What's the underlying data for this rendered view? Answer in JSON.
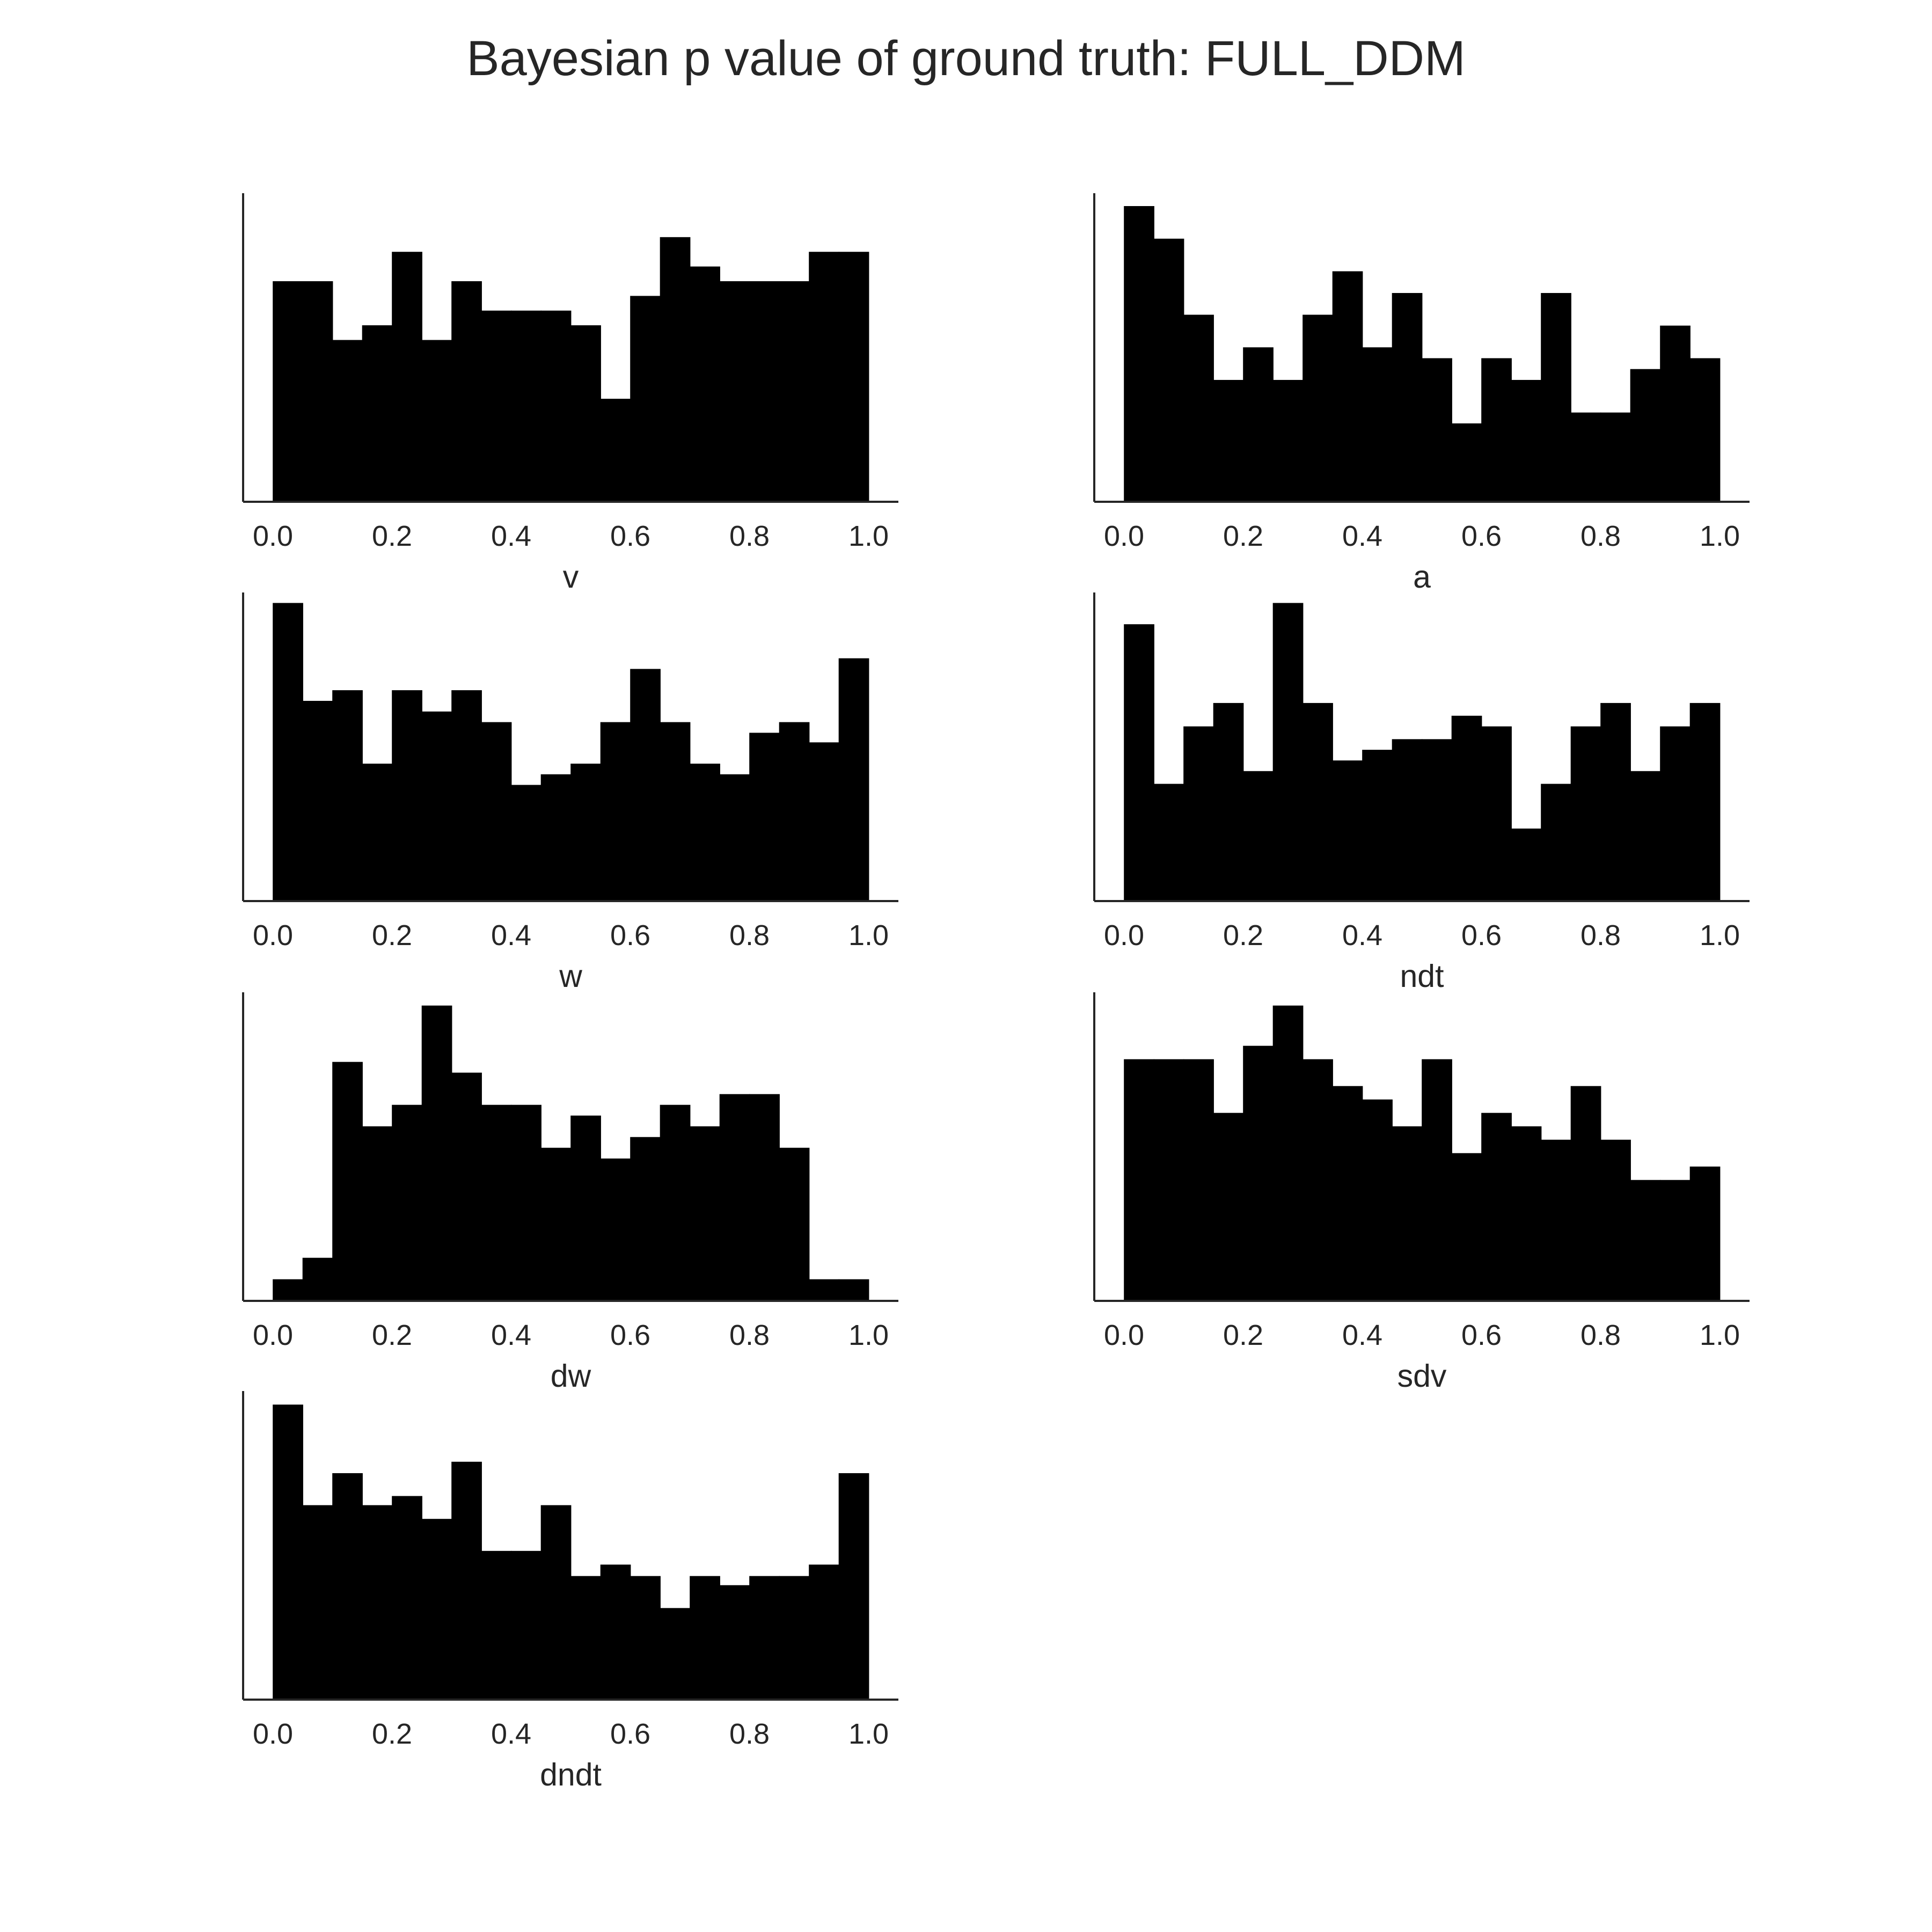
{
  "figure": {
    "title": "Bayesian p value of ground truth: FULL_DDM",
    "bar_color": "#000000",
    "text_color": "#262626",
    "background": "#ffffff"
  },
  "chart_data": [
    {
      "type": "bar",
      "subtype": "histogram",
      "xlabel": "v",
      "ylabel": "",
      "xlim": [
        -0.05,
        1.05
      ],
      "ylim": [
        0,
        21
      ],
      "xticks": [
        "0.0",
        "0.2",
        "0.4",
        "0.6",
        "0.8",
        "1.0"
      ],
      "yticks": [],
      "bins": 20,
      "bin_range": [
        0.0,
        1.0
      ],
      "values": [
        15,
        15,
        11,
        12,
        17,
        11,
        15,
        13,
        13,
        13,
        12,
        7,
        14,
        18,
        16,
        15,
        15,
        15,
        17,
        17
      ]
    },
    {
      "type": "bar",
      "subtype": "histogram",
      "xlabel": "a",
      "ylabel": "",
      "xlim": [
        -0.05,
        1.05
      ],
      "ylim": [
        0,
        14.2
      ],
      "xticks": [
        "0.0",
        "0.2",
        "0.4",
        "0.6",
        "0.8",
        "1.0"
      ],
      "yticks": [],
      "bins": 20,
      "bin_range": [
        0.0,
        1.0
      ],
      "values": [
        13.6,
        12.1,
        8.6,
        5.6,
        7.1,
        5.6,
        8.6,
        10.6,
        7.1,
        9.6,
        6.6,
        3.6,
        6.6,
        5.6,
        9.6,
        4.1,
        4.1,
        6.1,
        8.1,
        6.6
      ]
    },
    {
      "type": "bar",
      "subtype": "histogram",
      "xlabel": "w",
      "ylabel": "",
      "xlim": [
        -0.05,
        1.05
      ],
      "ylim": [
        0,
        29
      ],
      "xticks": [
        "0.0",
        "0.2",
        "0.4",
        "0.6",
        "0.8",
        "1.0"
      ],
      "yticks": [],
      "bins": 20,
      "bin_range": [
        0.0,
        1.0
      ],
      "values": [
        28,
        18.8,
        19.8,
        12.9,
        19.8,
        17.8,
        19.8,
        16.8,
        10.9,
        11.9,
        12.9,
        16.8,
        21.8,
        16.8,
        12.9,
        11.9,
        15.8,
        16.8,
        14.9,
        22.8
      ]
    },
    {
      "type": "bar",
      "subtype": "histogram",
      "xlabel": "ndt",
      "ylabel": "",
      "xlim": [
        -0.05,
        1.05
      ],
      "ylim": [
        0,
        14.5
      ],
      "xticks": [
        "0.0",
        "0.2",
        "0.4",
        "0.6",
        "0.8",
        "1.0"
      ],
      "yticks": [],
      "bins": 20,
      "bin_range": [
        0.0,
        1.0
      ],
      "values": [
        13,
        5.5,
        8.2,
        9.3,
        6.1,
        14,
        9.3,
        6.6,
        7.1,
        7.6,
        7.6,
        8.7,
        8.2,
        3.4,
        5.5,
        8.2,
        9.3,
        6.1,
        8.2,
        9.3
      ]
    },
    {
      "type": "bar",
      "subtype": "histogram",
      "xlabel": "dw",
      "ylabel": "",
      "xlim": [
        -0.05,
        1.05
      ],
      "ylim": [
        0,
        11.5
      ],
      "xticks": [
        "0.0",
        "0.2",
        "0.4",
        "0.6",
        "0.8",
        "1.0"
      ],
      "yticks": [],
      "bins": 20,
      "bin_range": [
        0.0,
        1.0
      ],
      "values": [
        0.8,
        1.6,
        8.9,
        6.5,
        7.3,
        11,
        8.5,
        7.3,
        7.3,
        5.7,
        6.9,
        5.3,
        6.1,
        7.3,
        6.5,
        7.7,
        7.7,
        5.7,
        0.8,
        0.8
      ]
    },
    {
      "type": "bar",
      "subtype": "histogram",
      "xlabel": "sdv",
      "ylabel": "",
      "xlim": [
        -0.05,
        1.05
      ],
      "ylim": [
        0,
        11.5
      ],
      "xticks": [
        "0.0",
        "0.2",
        "0.4",
        "0.6",
        "0.8",
        "1.0"
      ],
      "yticks": [],
      "bins": 20,
      "bin_range": [
        0.0,
        1.0
      ],
      "values": [
        9,
        9,
        9,
        7,
        9.5,
        11,
        9,
        8,
        7.5,
        6.5,
        9,
        5.5,
        7,
        6.5,
        6,
        8,
        6,
        4.5,
        4.5,
        5
      ]
    },
    {
      "type": "bar",
      "subtype": "histogram",
      "xlabel": "dndt",
      "ylabel": "",
      "xlim": [
        -0.05,
        1.05
      ],
      "ylim": [
        0,
        13.5
      ],
      "xticks": [
        "0.0",
        "0.2",
        "0.4",
        "0.6",
        "0.8",
        "1.0"
      ],
      "yticks": [],
      "bins": 20,
      "bin_range": [
        0.0,
        1.0
      ],
      "values": [
        12.9,
        8.5,
        9.9,
        8.5,
        8.9,
        7.9,
        10.4,
        6.5,
        6.5,
        8.5,
        5.4,
        5.9,
        5.4,
        4,
        5.4,
        5,
        5.4,
        5.4,
        5.9,
        9.9
      ]
    }
  ]
}
